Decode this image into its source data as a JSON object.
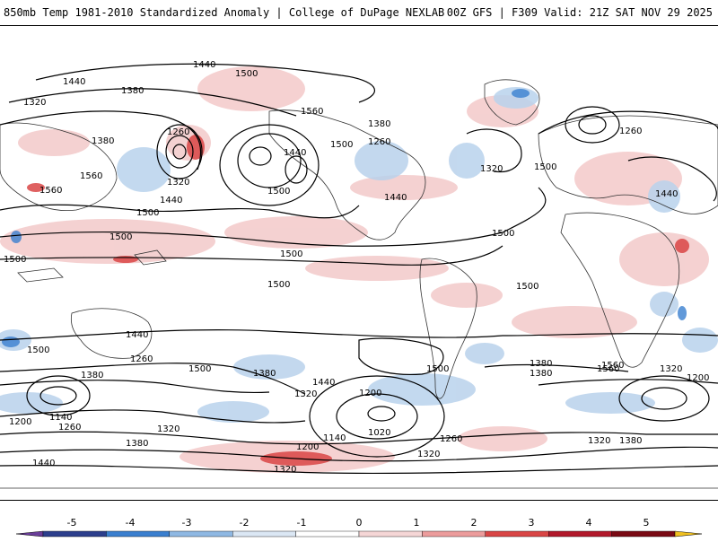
{
  "header": {
    "title_left": "850mb Temp 1981-2010 Standardized Anomaly | College of DuPage NEXLAB",
    "title_right": "00Z GFS | F309 Valid: 21Z SAT NOV 29 2025"
  },
  "contours": {
    "labels": [
      "1440",
      "1500",
      "1380",
      "1320",
      "1560",
      "1260",
      "1440",
      "1500",
      "1380",
      "1500",
      "1320",
      "1440",
      "1440",
      "1380",
      "1500",
      "1560",
      "1260",
      "1560",
      "1440",
      "1500",
      "1500",
      "1440",
      "1500",
      "1320",
      "1500",
      "1560",
      "1500",
      "1500",
      "1500",
      "1440",
      "1380",
      "1500",
      "1380",
      "1260",
      "1320",
      "1440",
      "1500",
      "1380",
      "1200",
      "1140",
      "1200",
      "1260",
      "1320",
      "1020",
      "1140",
      "1380",
      "1260",
      "1200",
      "1320",
      "1200",
      "1380",
      "1320",
      "1380",
      "1440",
      "1320",
      "1500",
      "1560",
      "1260",
      "1320"
    ]
  },
  "colorbar": {
    "ticks": [
      "-5",
      "-4",
      "-3",
      "-2",
      "-1",
      "0",
      "1",
      "2",
      "3",
      "4",
      "5"
    ],
    "colors": [
      "#6a3d9a",
      "#2c3e8c",
      "#3a7fcf",
      "#8fb8e3",
      "#dbe7f4",
      "#ffffff",
      "#f5d6d6",
      "#ec9c9c",
      "#d94545",
      "#b2182b",
      "#7a0a14",
      "#f0c020"
    ]
  }
}
